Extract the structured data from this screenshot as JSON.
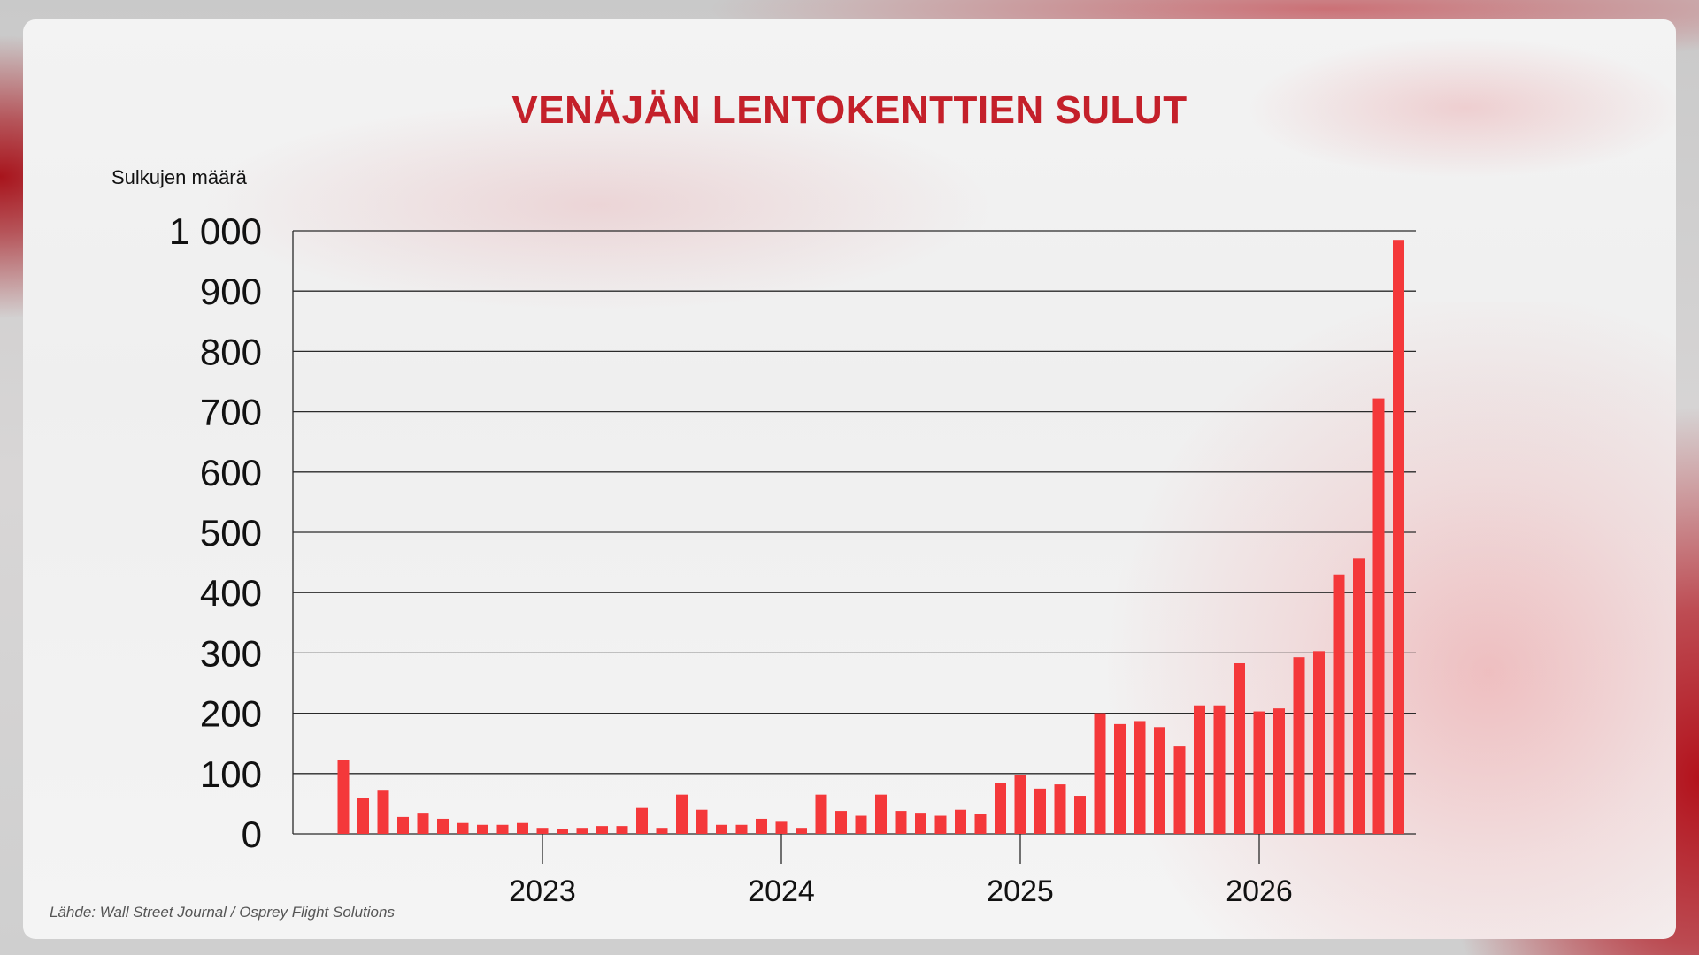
{
  "title": "VENÄJÄN LENTOKENTTIEN SULUT",
  "source": "Lähde: Wall Street Journal / Osprey Flight Solutions",
  "chart_data": {
    "type": "bar",
    "title": "VENÄJÄN LENTOKENTTIEN SULUT",
    "ylabel": "Sulkujen määrä",
    "xlabel": "",
    "ylim": [
      0,
      1000
    ],
    "y_ticks": [
      0,
      100,
      200,
      300,
      400,
      500,
      600,
      700,
      800,
      900,
      1000
    ],
    "y_tick_labels": [
      "0",
      "100",
      "200",
      "300",
      "400",
      "500",
      "600",
      "700",
      "800",
      "900",
      "1 000"
    ],
    "x_tick_labels": [
      "2023",
      "2024",
      "2025",
      "2026"
    ],
    "grid": true,
    "bar_color": "#f4383a",
    "values": [
      123,
      60,
      73,
      28,
      35,
      25,
      18,
      15,
      15,
      18,
      10,
      8,
      10,
      13,
      13,
      43,
      10,
      65,
      40,
      15,
      15,
      25,
      20,
      10,
      65,
      38,
      30,
      65,
      38,
      35,
      30,
      40,
      33,
      85,
      97,
      75,
      82,
      63,
      200,
      182,
      187,
      177,
      145,
      213,
      213,
      283,
      203,
      208,
      293,
      303,
      430,
      457,
      722,
      985
    ]
  }
}
